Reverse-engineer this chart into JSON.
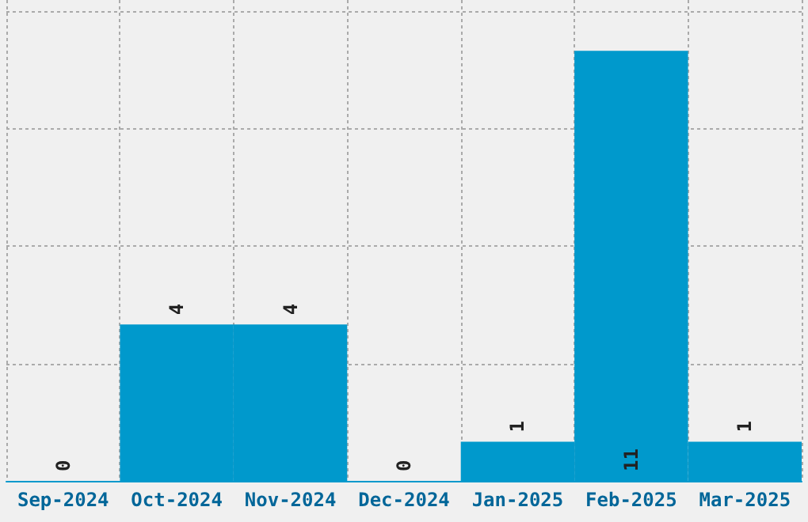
{
  "chart_data": {
    "type": "bar",
    "categories": [
      "Sep-2024",
      "Oct-2024",
      "Nov-2024",
      "Dec-2024",
      "Jan-2025",
      "Feb-2025",
      "Mar-2025"
    ],
    "values": [
      0,
      4,
      4,
      0,
      1,
      11,
      1
    ],
    "color": "#0099cc",
    "data_labels": true,
    "relative": false,
    "ylim": [
      0,
      12.3
    ],
    "yticks": [
      {
        "value": 0,
        "label": null
      },
      {
        "value": 3,
        "label": null
      },
      {
        "value": 6,
        "label": null
      },
      {
        "value": 9,
        "label": null
      },
      {
        "value": 12,
        "label": null
      }
    ],
    "tick_labels": "x",
    "grid": true
  }
}
